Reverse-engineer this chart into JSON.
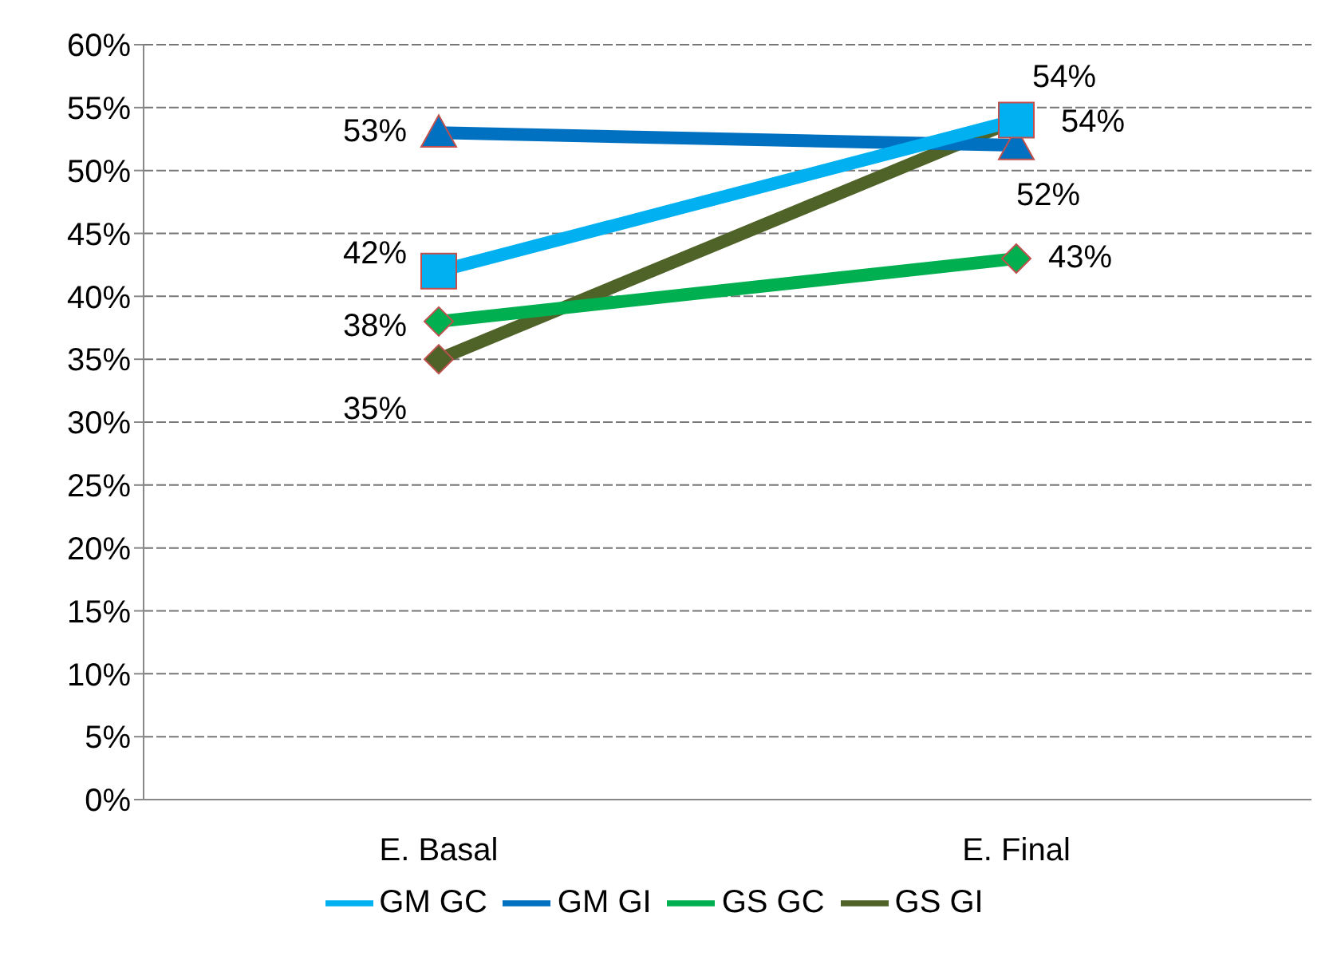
{
  "chart_data": {
    "type": "line",
    "categories": [
      "E. Basal",
      "E. Final"
    ],
    "series": [
      {
        "name": "GS GI",
        "color": "#4f6228",
        "marker": "diamond",
        "values": [
          35,
          54
        ],
        "value_labels": [
          "35%",
          "54%"
        ]
      },
      {
        "name": "GS GC",
        "color": "#00b050",
        "marker": "diamond",
        "values": [
          38,
          43
        ],
        "value_labels": [
          "38%",
          "43%"
        ]
      },
      {
        "name": "GM GI",
        "color": "#0070c0",
        "marker": "triangle",
        "values": [
          53,
          52
        ],
        "value_labels": [
          "53%",
          "52%"
        ]
      },
      {
        "name": "GM GC",
        "color": "#00b0f0",
        "marker": "square",
        "values": [
          42,
          54
        ],
        "value_labels": [
          "42%",
          "54%"
        ]
      }
    ],
    "ylim": [
      0,
      60
    ],
    "yticks": [
      {
        "value": 0,
        "label": "0%"
      },
      {
        "value": 5,
        "label": "5%"
      },
      {
        "value": 10,
        "label": "10%"
      },
      {
        "value": 15,
        "label": "15%"
      },
      {
        "value": 20,
        "label": "20%"
      },
      {
        "value": 25,
        "label": "25%"
      },
      {
        "value": 30,
        "label": "30%"
      },
      {
        "value": 35,
        "label": "35%"
      },
      {
        "value": 40,
        "label": "40%"
      },
      {
        "value": 45,
        "label": "45%"
      },
      {
        "value": 50,
        "label": "50%"
      },
      {
        "value": 55,
        "label": "55%"
      },
      {
        "value": 60,
        "label": "60%"
      }
    ],
    "grid": "y",
    "legend": "bottom",
    "line_style": "solid"
  }
}
